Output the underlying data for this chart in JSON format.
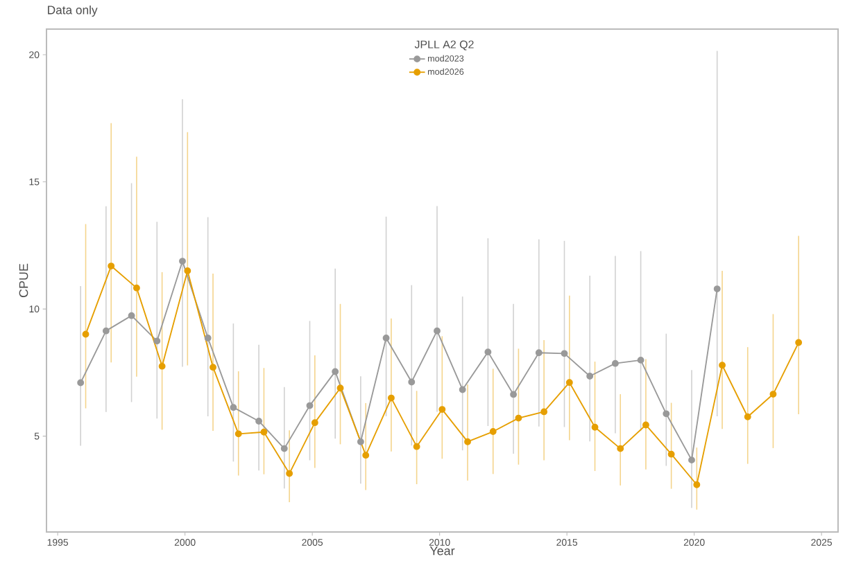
{
  "chart_data": {
    "type": "line",
    "title": "Data only",
    "xlabel": "Year",
    "ylabel": "CPUE",
    "legend_title": "JPLL A2 Q2",
    "legend": "top",
    "marker": "circle",
    "xlim": [
      1994.56,
      2025.65
    ],
    "ylim": [
      1.23,
      21.01
    ],
    "xticks": [
      1995,
      2000,
      2005,
      2010,
      2015,
      2020,
      2025
    ],
    "yticks": [
      5,
      10,
      15,
      20
    ],
    "series": [
      {
        "name": "mod2023",
        "color": "#999999",
        "x": [
          1995.9,
          1996.9,
          1997.9,
          1998.9,
          1999.9,
          2000.9,
          2001.9,
          2002.9,
          2003.9,
          2004.9,
          2005.9,
          2006.9,
          2007.9,
          2008.9,
          2009.9,
          2010.9,
          2011.9,
          2012.9,
          2013.9,
          2014.9,
          2015.9,
          2016.9,
          2017.9,
          2018.9,
          2019.9,
          2020.9
        ],
        "values": [
          7.1,
          9.14,
          9.74,
          8.74,
          11.88,
          8.86,
          6.13,
          5.59,
          4.51,
          6.2,
          7.54,
          4.78,
          8.86,
          7.13,
          9.14,
          6.83,
          8.31,
          6.64,
          8.28,
          8.25,
          7.36,
          7.86,
          7.99,
          5.88,
          4.06,
          10.79
        ],
        "errors": [
          [
            4.62,
            10.9
          ],
          [
            5.95,
            14.04
          ],
          [
            6.34,
            14.95
          ],
          [
            5.69,
            13.43
          ],
          [
            7.73,
            18.25
          ],
          [
            5.78,
            13.61
          ],
          [
            4.0,
            9.43
          ],
          [
            3.65,
            8.59
          ],
          [
            2.94,
            6.93
          ],
          [
            4.05,
            9.53
          ],
          [
            4.9,
            11.59
          ],
          [
            3.13,
            7.35
          ],
          [
            5.78,
            13.63
          ],
          [
            4.63,
            10.94
          ],
          [
            5.96,
            14.05
          ],
          [
            4.44,
            10.49
          ],
          [
            5.4,
            12.78
          ],
          [
            4.31,
            10.2
          ],
          [
            5.38,
            12.74
          ],
          [
            5.36,
            12.68
          ],
          [
            4.79,
            11.31
          ],
          [
            5.11,
            12.09
          ],
          [
            5.2,
            12.28
          ],
          [
            3.83,
            9.03
          ],
          [
            2.18,
            7.6
          ],
          [
            5.78,
            20.15
          ]
        ]
      },
      {
        "name": "mod2026",
        "color": "#e69f00",
        "x": [
          1996.1,
          1997.1,
          1998.1,
          1999.1,
          2000.1,
          2001.1,
          2002.1,
          2003.1,
          2004.1,
          2005.1,
          2006.1,
          2007.1,
          2008.1,
          2009.1,
          2010.1,
          2011.1,
          2012.1,
          2013.1,
          2014.1,
          2015.1,
          2016.1,
          2017.1,
          2018.1,
          2019.1,
          2020.1,
          2021.1,
          2022.1,
          2023.1,
          2024.1
        ],
        "values": [
          9.01,
          11.69,
          10.83,
          7.75,
          11.5,
          7.71,
          5.09,
          5.16,
          3.53,
          5.53,
          6.89,
          4.25,
          6.5,
          4.59,
          6.05,
          4.78,
          5.18,
          5.71,
          5.96,
          7.11,
          5.35,
          4.51,
          5.44,
          4.29,
          3.09,
          7.79,
          5.76,
          6.65,
          8.68
        ],
        "errors": [
          [
            6.09,
            13.34
          ],
          [
            7.9,
            17.31
          ],
          [
            7.34,
            15.99
          ],
          [
            5.25,
            11.45
          ],
          [
            7.78,
            16.96
          ],
          [
            5.21,
            11.39
          ],
          [
            3.45,
            7.55
          ],
          [
            3.5,
            7.68
          ],
          [
            2.4,
            5.23
          ],
          [
            3.75,
            8.18
          ],
          [
            4.68,
            10.2
          ],
          [
            2.88,
            6.3
          ],
          [
            4.4,
            9.63
          ],
          [
            3.11,
            6.78
          ],
          [
            4.11,
            8.93
          ],
          [
            3.25,
            7.03
          ],
          [
            3.51,
            7.65
          ],
          [
            3.88,
            8.44
          ],
          [
            4.05,
            8.78
          ],
          [
            4.84,
            10.53
          ],
          [
            3.63,
            7.93
          ],
          [
            3.06,
            6.65
          ],
          [
            3.69,
            8.03
          ],
          [
            2.93,
            6.31
          ],
          [
            2.11,
            4.55
          ],
          [
            5.28,
            11.5
          ],
          [
            3.91,
            8.5
          ],
          [
            4.53,
            9.8
          ],
          [
            5.86,
            12.88
          ]
        ]
      }
    ]
  }
}
